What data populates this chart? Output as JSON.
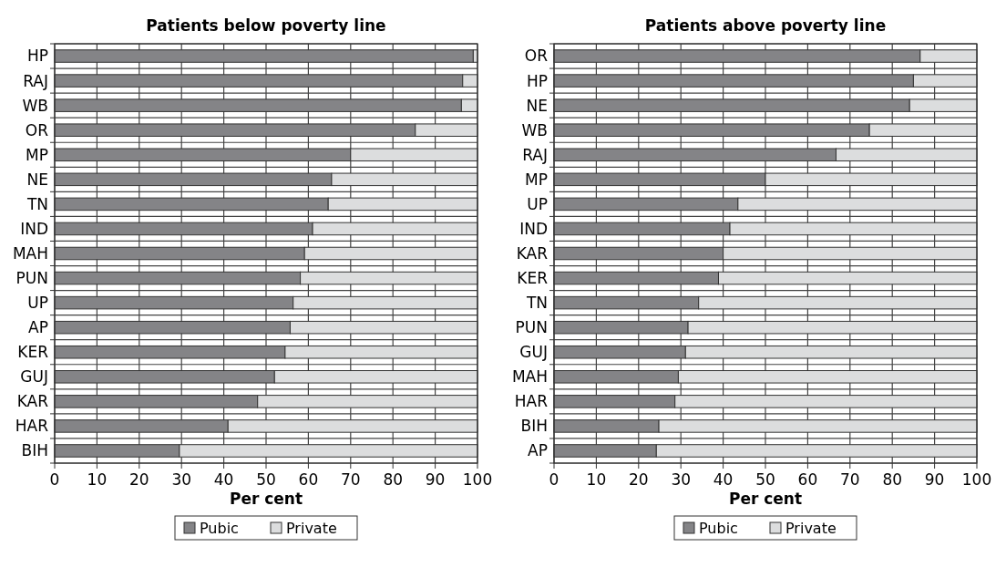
{
  "chart_data": [
    {
      "type": "bar",
      "orientation": "horizontal",
      "stacked": true,
      "title": "Patients below poverty line",
      "xlabel": "Per cent",
      "categories": [
        "HP",
        "RAJ",
        "WB",
        "OR",
        "MP",
        "NE",
        "TN",
        "IND",
        "MAH",
        "PUN",
        "UP",
        "AP",
        "KER",
        "GUJ",
        "KAR",
        "HAR",
        "BIH"
      ],
      "series": [
        {
          "name": "Pubic",
          "color": "#848487",
          "values": [
            99,
            96.5,
            96.2,
            85.3,
            70,
            65.5,
            64.7,
            61,
            59.1,
            58.1,
            56.4,
            55.7,
            54.5,
            52,
            48,
            41,
            29.5
          ]
        },
        {
          "name": "Private",
          "color": "#dcddde",
          "values": [
            1,
            3.5,
            3.8,
            14.7,
            30,
            34.5,
            35.3,
            39,
            40.9,
            41.9,
            43.6,
            44.3,
            45.5,
            48,
            52,
            59,
            70.5
          ]
        }
      ],
      "xlim": [
        0,
        100
      ],
      "xticks": [
        0,
        10,
        20,
        30,
        40,
        50,
        60,
        70,
        80,
        90,
        100
      ],
      "grid": true,
      "legend": "bottom"
    },
    {
      "type": "bar",
      "orientation": "horizontal",
      "stacked": true,
      "title": "Patients above poverty line",
      "xlabel": "Per cent",
      "categories": [
        "OR",
        "HP",
        "NE",
        "WB",
        "RAJ",
        "MP",
        "UP",
        "IND",
        "KAR",
        "KER",
        "TN",
        "PUN",
        "GUJ",
        "MAH",
        "HAR",
        "BIH",
        "AP"
      ],
      "series": [
        {
          "name": "Pubic",
          "color": "#848487",
          "values": [
            86.6,
            85,
            84.1,
            74.6,
            66.7,
            50,
            43.5,
            41.6,
            40,
            38.9,
            34.2,
            31.7,
            31.1,
            29.4,
            28.6,
            24.8,
            24.2
          ]
        },
        {
          "name": "Private",
          "color": "#dcddde",
          "values": [
            13.4,
            15,
            15.9,
            25.4,
            33.3,
            50,
            56.5,
            58.4,
            60,
            61.1,
            65.8,
            68.3,
            68.9,
            70.6,
            71.4,
            75.2,
            75.8
          ]
        }
      ],
      "xlim": [
        0,
        100
      ],
      "xticks": [
        0,
        10,
        20,
        30,
        40,
        50,
        60,
        70,
        80,
        90,
        100
      ],
      "grid": true,
      "legend": "bottom"
    }
  ]
}
